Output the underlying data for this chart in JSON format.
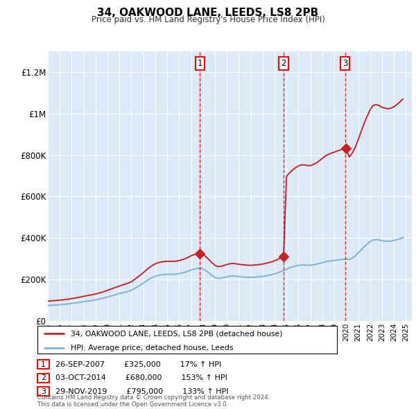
{
  "title": "34, OAKWOOD LANE, LEEDS, LS8 2PB",
  "subtitle": "Price paid vs. HM Land Registry's House Price Index (HPI)",
  "xlim_start": 1995.0,
  "xlim_end": 2025.5,
  "ylim": [
    0,
    1300000
  ],
  "yticks": [
    0,
    200000,
    400000,
    600000,
    800000,
    1000000,
    1200000
  ],
  "ytick_labels": [
    "£0",
    "£200K",
    "£400K",
    "£600K",
    "£800K",
    "£1M",
    "£1.2M"
  ],
  "plot_bg_color": "#dce9f7",
  "grid_color": "#ffffff",
  "legend_label_red": "34, OAKWOOD LANE, LEEDS, LS8 2PB (detached house)",
  "legend_label_blue": "HPI: Average price, detached house, Leeds",
  "footnote": "Contains HM Land Registry data © Crown copyright and database right 2024.\nThis data is licensed under the Open Government Licence v3.0.",
  "sale_dates": [
    2007.74,
    2014.75,
    2019.91
  ],
  "sale_prices": [
    325000,
    680000,
    795000
  ],
  "sale_labels": [
    "1",
    "2",
    "3"
  ],
  "sale_info": [
    {
      "label": "1",
      "date": "26-SEP-2007",
      "price": "£325,000",
      "hpi": "17% ↑ HPI"
    },
    {
      "label": "2",
      "date": "03-OCT-2014",
      "price": "£680,000",
      "hpi": "153% ↑ HPI"
    },
    {
      "label": "3",
      "date": "29-NOV-2019",
      "price": "£795,000",
      "hpi": "133% ↑ HPI"
    }
  ],
  "hpi_index": [
    100.0,
    101.2,
    102.5,
    103.8,
    105.2,
    106.7,
    108.5,
    110.6,
    113.5,
    115.9,
    118.3,
    121.3,
    124.8,
    127.5,
    130.2,
    132.9,
    136.4,
    140.2,
    144.4,
    149.4,
    154.8,
    160.2,
    165.6,
    171.0,
    176.5,
    181.8,
    186.0,
    191.3,
    197.8,
    208.5,
    219.4,
    231.5,
    243.5,
    256.7,
    269.0,
    279.5,
    287.8,
    293.5,
    297.0,
    299.5,
    300.5,
    300.5,
    300.5,
    301.5,
    304.5,
    308.5,
    313.5,
    320.5,
    328.5,
    334.0,
    338.0,
    339.5,
    335.5,
    323.5,
    309.0,
    293.5,
    280.5,
    274.0,
    275.5,
    279.5,
    284.5,
    288.5,
    290.0,
    288.5,
    285.5,
    284.0,
    282.5,
    281.0,
    280.5,
    281.5,
    283.0,
    284.5,
    287.0,
    290.0,
    294.0,
    298.0,
    303.0,
    309.5,
    317.5,
    325.5,
    333.5,
    341.5,
    348.0,
    353.5,
    357.5,
    360.0,
    360.0,
    358.5,
    358.5,
    361.0,
    364.5,
    369.5,
    375.0,
    380.5,
    384.5,
    387.0,
    389.5,
    392.0,
    394.5,
    397.0,
    398.5,
    396.0,
    405.0,
    418.5,
    437.5,
    457.5,
    477.0,
    494.0,
    510.0,
    520.5,
    522.5,
    520.5,
    516.0,
    514.0,
    512.5,
    514.0,
    517.5,
    522.5,
    529.0,
    536.0
  ],
  "hpi_base": 75000,
  "xtick_years": [
    1995,
    1996,
    1997,
    1998,
    1999,
    2000,
    2001,
    2002,
    2003,
    2004,
    2005,
    2006,
    2007,
    2008,
    2009,
    2010,
    2011,
    2012,
    2013,
    2014,
    2015,
    2016,
    2017,
    2018,
    2019,
    2020,
    2021,
    2022,
    2023,
    2024,
    2025
  ]
}
